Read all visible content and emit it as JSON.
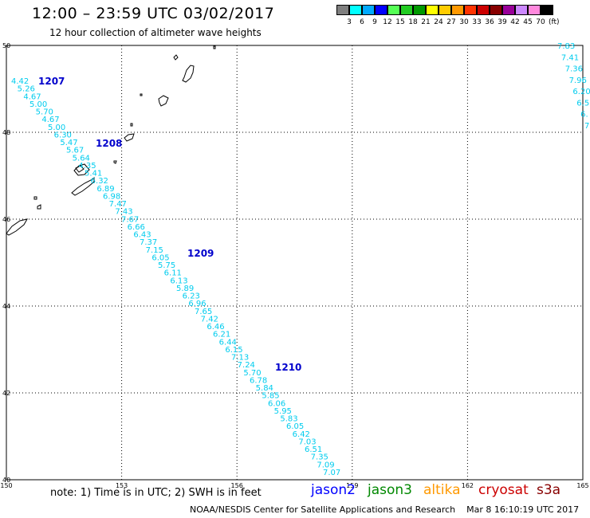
{
  "header": {
    "title": "12:00 – 23:59 UTC 03/02/2017",
    "subtitle": "12 hour collection of altimeter wave heights"
  },
  "legend": {
    "colors": [
      "#7f7f7f",
      "#00ffff",
      "#00aaff",
      "#0000ff",
      "#55ff55",
      "#22cc22",
      "#009900",
      "#ffff00",
      "#ffcc00",
      "#ff9900",
      "#ff3300",
      "#cc0000",
      "#880000",
      "#990099",
      "#cc88ff",
      "#ff88dd",
      "#000000"
    ],
    "labels": [
      "3",
      "6",
      "9",
      "12",
      "15",
      "18",
      "21",
      "24",
      "27",
      "30",
      "33",
      "36",
      "39",
      "42",
      "45",
      "70"
    ],
    "unit": "(ft)"
  },
  "map": {
    "lon_range": [
      150,
      165
    ],
    "lat_range": [
      40,
      50
    ],
    "x_ticks": [
      "150",
      "153",
      "156",
      "159",
      "162",
      "165"
    ],
    "y_ticks": [
      "50",
      "48",
      "46",
      "44",
      "42",
      "40"
    ],
    "track_color": "#00ccee",
    "time_label_color": "#0000cc",
    "time_labels": [
      "1207",
      "1208",
      "1209",
      "1210"
    ],
    "track_values": [
      "4.42",
      "5.26",
      "4.67",
      "5.00",
      "5.70",
      "4.67",
      "5.00",
      "6.30",
      "5.47",
      "5.67",
      "5.64",
      "4.35",
      "5.41",
      "6.32",
      "6.89",
      "6.98",
      "7.47",
      "7.43",
      "7.67",
      "6.66",
      "6.43",
      "7.37",
      "7.15",
      "6.05",
      "5.75",
      "6.11",
      "6.13",
      "5.89",
      "6.23",
      "6.96",
      "7.65",
      "7.42",
      "6.46",
      "6.21",
      "6.44",
      "6.15",
      "7.13",
      "7.24",
      "5.70",
      "6.78",
      "5.84",
      "5.85",
      "6.06",
      "5.95",
      "5.83",
      "6.05",
      "6.42",
      "7.03",
      "6.51",
      "7.35",
      "7.09",
      "7.07"
    ],
    "right_track_values": [
      "7.83",
      "7.41",
      "7.36",
      "7.96",
      "6.20",
      "6.5",
      "6.",
      "7."
    ]
  },
  "footer": {
    "note": "note:  1) Time is in UTC;  2) SWH is in feet",
    "satellites": [
      {
        "name": "jason2",
        "color": "#0000ff"
      },
      {
        "name": "jason3",
        "color": "#008800"
      },
      {
        "name": "altika",
        "color": "#ff9900"
      },
      {
        "name": "cryosat",
        "color": "#cc0000"
      },
      {
        "name": "s3a",
        "color": "#880000"
      }
    ],
    "credit": "NOAA/NESDIS Center for Satellite Applications and Research",
    "timestamp": "Mar  8 16:10:19 UTC 2017"
  }
}
